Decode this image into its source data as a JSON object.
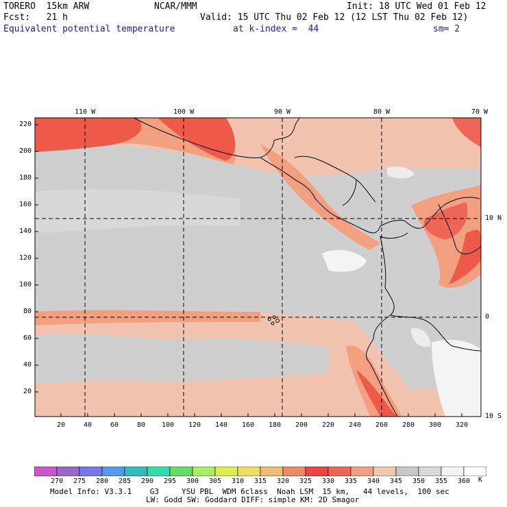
{
  "header": {
    "model": "TORERO  15km ARW",
    "center": "NCAR/MMM",
    "init": "Init: 18 UTC Wed 01 Feb 12",
    "fcst": "Fcst:   21 h",
    "valid": "Valid: 15 UTC Thu 02 Feb 12 (12 LST Thu 02 Feb 12)",
    "field": "Equivalent potential temperature",
    "level": "at k-index =  44",
    "smooth": "sm= 2"
  },
  "map": {
    "lon_labels": [
      "110 W",
      "100 W",
      "90 W",
      "80 W",
      "70 W"
    ],
    "lat_labels": [
      "10 N",
      "0",
      "10 S"
    ],
    "y_ticks": [
      "220",
      "200",
      "180",
      "160",
      "140",
      "120",
      "100",
      "80",
      "60",
      "40",
      "20"
    ],
    "x_ticks": [
      "20",
      "40",
      "60",
      "80",
      "100",
      "120",
      "140",
      "160",
      "180",
      "200",
      "220",
      "240",
      "260",
      "280",
      "300",
      "320"
    ]
  },
  "colorbar": {
    "labels": [
      "270",
      "275",
      "280",
      "285",
      "290",
      "295",
      "300",
      "305",
      "310",
      "315",
      "320",
      "325",
      "330",
      "335",
      "340",
      "345",
      "350",
      "355",
      "360"
    ],
    "unit": "K",
    "colors": [
      "#cc55cc",
      "#9966cc",
      "#7777ee",
      "#5599ee",
      "#33bbbb",
      "#33ddaa",
      "#66dd66",
      "#aaee66",
      "#ddee55",
      "#eedd66",
      "#eebb77",
      "#ee8866",
      "#ee4444",
      "#ee6655",
      "#f2a080",
      "#f0c8b0",
      "#c8c8c8",
      "#d8d8d8",
      "#f4f4f4",
      "#ffffff"
    ]
  },
  "footer": {
    "line1": "Model Info: V3.3.1    G3     YSU PBL  WDM 6class  Noah LSM  15 km,   44 levels,  100 sec",
    "line2": "LW: Godd SW: Goddard DIFF: simple KM: 2D Smagor"
  }
}
